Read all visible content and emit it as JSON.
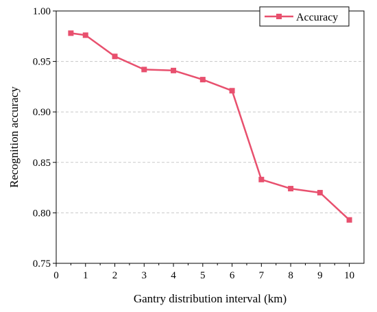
{
  "chart_data": {
    "type": "line",
    "title": "",
    "xlabel": "Gantry distribution interval (km)",
    "ylabel": "Recognition accuracy",
    "xlim": [
      0,
      10.5
    ],
    "ylim": [
      0.75,
      1.0
    ],
    "x_ticks": [
      "0",
      "1",
      "2",
      "3",
      "4",
      "5",
      "6",
      "7",
      "8",
      "9",
      "10"
    ],
    "y_ticks": [
      "0.75",
      "0.80",
      "0.85",
      "0.90",
      "0.95",
      "1.00"
    ],
    "grid": "horizontal dashed",
    "legend_position": "top-right",
    "series": [
      {
        "name": "Accuracy",
        "color": "#e8506e",
        "marker": "square",
        "x": [
          0.5,
          1,
          2,
          3,
          4,
          5,
          6,
          7,
          8,
          9,
          10
        ],
        "y": [
          0.978,
          0.976,
          0.955,
          0.942,
          0.941,
          0.932,
          0.921,
          0.833,
          0.824,
          0.82,
          0.793
        ]
      }
    ]
  }
}
